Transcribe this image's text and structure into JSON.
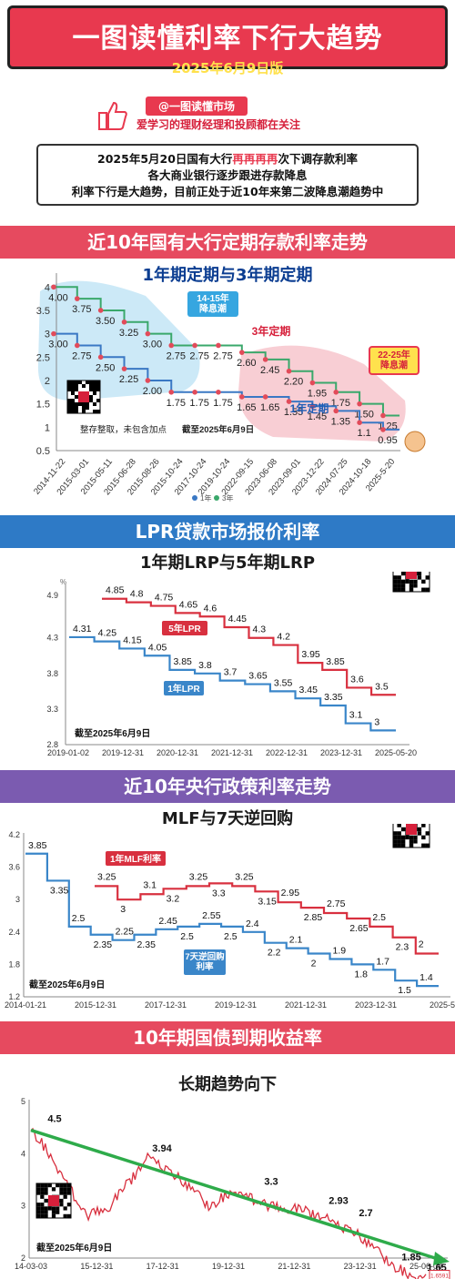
{
  "header": {
    "title": "一图读懂利率下行大趋势",
    "date": "2025年6月9日版"
  },
  "author": {
    "handle": "@一图读懂市场",
    "follow": "爱学习的理财经理和投顾都在关注"
  },
  "intro": {
    "line1_a": "2025年5月20日国有大行",
    "line1_b": "再再再再",
    "line1_c": "次下调存款利率",
    "line2": "各大商业银行逐步跟进存款降息",
    "line3": "利率下行是大趋势，目前正处于近10年来第二波降息潮趋势中"
  },
  "sections": {
    "s1": "近10年国有大行定期存款利率走势",
    "s2": "LPR贷款市场报价利率",
    "s3": "近10年央行政策利率走势",
    "s4": "10年期国债到期收益率"
  },
  "colors": {
    "red": "#e8394f",
    "green": "#3aa86b",
    "blue": "#3a78c4",
    "arrow": "#2eab4a"
  },
  "chart_data": [
    {
      "type": "line",
      "title": "1年期定期与3年期定期",
      "x": [
        "2014-11-22",
        "2015-03-01",
        "2015-05-11",
        "2015-06-28",
        "2015-08-26",
        "2015-10-24",
        "2017-10-24",
        "2019-10-24",
        "2022-09-15",
        "2023-06-08",
        "2023-09-01",
        "2023-12-22",
        "2024-07-25",
        "2024-10-18",
        "2025-5-20"
      ],
      "ylim": [
        0.5,
        4.2
      ],
      "yticks": [
        "4",
        "3.5",
        "3",
        "2.5",
        "2",
        "1.5",
        "1",
        "0.5"
      ],
      "series": [
        {
          "name": "3年定期",
          "values": [
            4.0,
            3.75,
            3.5,
            3.25,
            3.0,
            2.75,
            2.75,
            2.75,
            2.6,
            2.45,
            2.2,
            1.95,
            1.75,
            1.5,
            1.25
          ]
        },
        {
          "name": "1年定期",
          "values": [
            3.0,
            2.75,
            2.5,
            2.25,
            2.0,
            1.75,
            1.75,
            1.75,
            1.65,
            1.65,
            1.55,
            1.45,
            1.35,
            1.1,
            0.95
          ]
        }
      ],
      "legend": [
        "1年",
        "3年"
      ],
      "annotations": {
        "wave1": "14-15年\n降息潮",
        "wave2": "22-25年\n降息潮",
        "note": "整存整取，未包含加点",
        "cutoff": "截至2025年6月9日"
      }
    },
    {
      "type": "line",
      "title": "1年期LRP与5年期LRP",
      "unit": "%",
      "x_ticks": [
        "2019-01-02",
        "2019-12-31",
        "2020-12-31",
        "2021-12-31",
        "2022-12-31",
        "2023-12-31",
        "2025-05-20"
      ],
      "ylim": [
        2.8,
        5.0
      ],
      "yticks": [
        "4.9",
        "4.3",
        "3.8",
        "3.3",
        "2.8"
      ],
      "series": [
        {
          "name": "5年LPR",
          "values": [
            4.85,
            4.8,
            4.75,
            4.65,
            4.6,
            4.45,
            4.3,
            4.2,
            3.95,
            3.85,
            3.6,
            3.5
          ]
        },
        {
          "name": "1年LPR",
          "values": [
            4.31,
            4.25,
            4.15,
            4.05,
            3.85,
            3.8,
            3.7,
            3.65,
            3.55,
            3.45,
            3.35,
            3.1,
            3.0
          ]
        }
      ],
      "cutoff": "截至2025年6月9日"
    },
    {
      "type": "line",
      "title": "MLF与7天逆回购",
      "x_ticks": [
        "2014-01-21",
        "2015-12-31",
        "2017-12-31",
        "2019-12-31",
        "2021-12-31",
        "2023-12-31",
        "2025-5-8"
      ],
      "ylim": [
        1.2,
        4.2
      ],
      "yticks": [
        "4.2",
        "3.6",
        "3",
        "2.4",
        "1.8",
        "1.2"
      ],
      "series": [
        {
          "name": "1年MLF利率",
          "values": [
            3.25,
            3,
            3.1,
            3.2,
            3.25,
            3.3,
            3.25,
            3.15,
            2.95,
            2.85,
            2.75,
            2.65,
            2.5,
            2.3,
            2
          ]
        },
        {
          "name": "7天逆回购\n利率",
          "values": [
            3.85,
            3.35,
            2.5,
            2.35,
            2.25,
            2.35,
            2.45,
            2.5,
            2.55,
            2.5,
            2.4,
            2.2,
            2.1,
            2,
            1.9,
            1.8,
            1.7,
            1.5,
            1.4
          ]
        }
      ],
      "cutoff": "截至2025年6月9日"
    },
    {
      "type": "line",
      "title": "长期趋势向下",
      "x_ticks": [
        "14-03-03",
        "15-12-31",
        "17-12-31",
        "19-12-31",
        "21-12-31",
        "23-12-31",
        "25-06-09"
      ],
      "ylim": [
        2,
        5
      ],
      "yticks": [
        "5",
        "4",
        "3",
        "2"
      ],
      "labels": [
        "4.5",
        "3.94",
        "3.3",
        "2.93",
        "2.7",
        "1.85",
        "1.65"
      ],
      "last_value": "1.6591",
      "cutoff": "截至2025年6月9日"
    }
  ]
}
